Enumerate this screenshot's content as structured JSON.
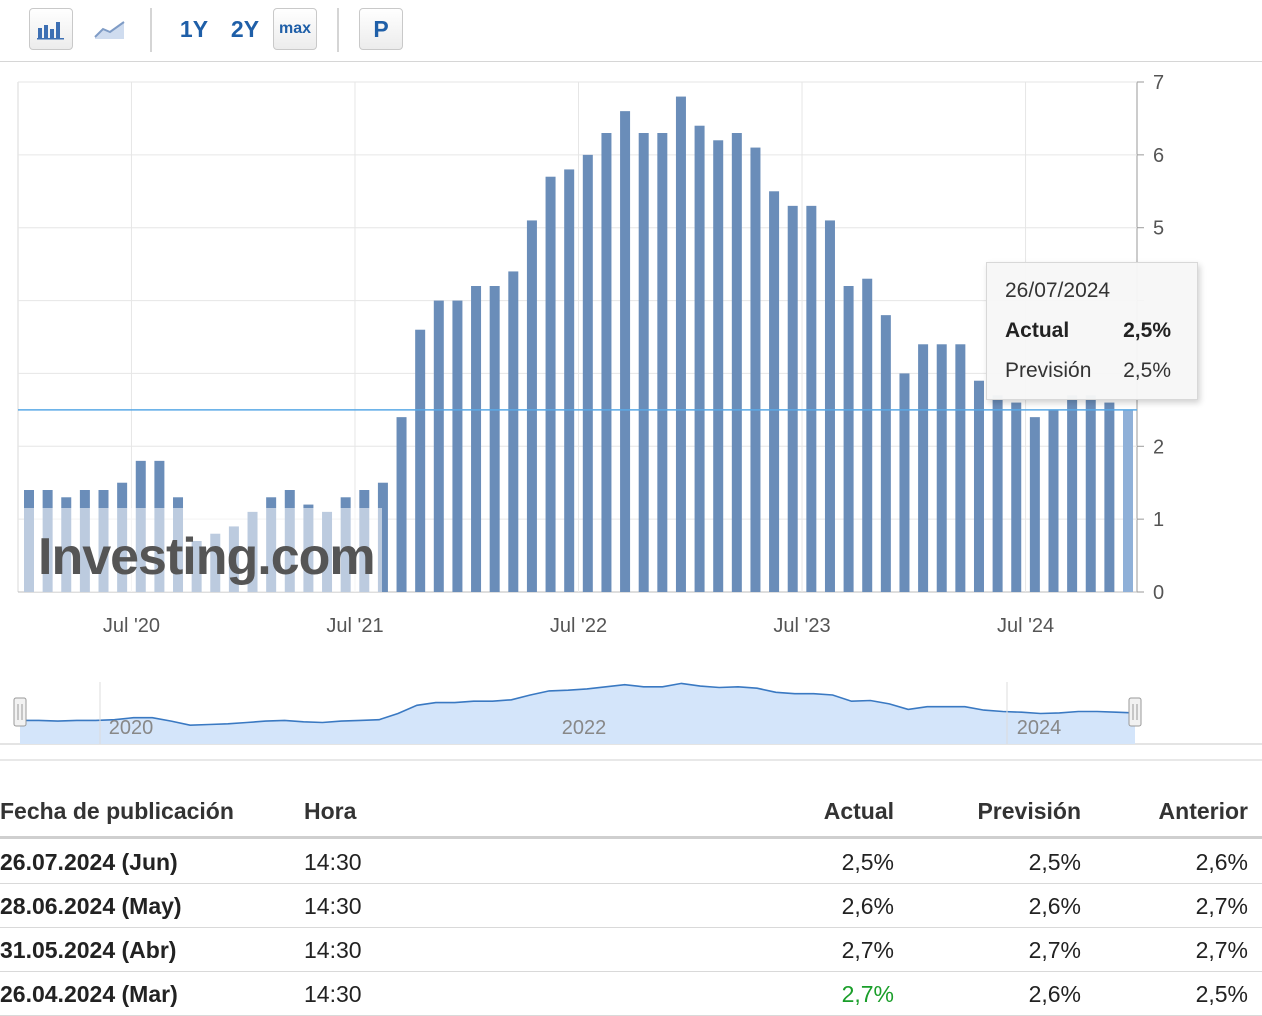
{
  "toolbar": {
    "bar_chart_icon": "bar-chart-icon",
    "line_chart_icon": "line-chart-icon",
    "range_1y": "1Y",
    "range_2y": "2Y",
    "range_max": "max",
    "p_button": "P"
  },
  "chart_data": {
    "type": "bar",
    "title": "",
    "xlabel": "",
    "ylabel": "",
    "ylim": [
      0,
      7
    ],
    "y_ticks": [
      "0",
      "1",
      "2",
      "",
      "",
      "5",
      "6",
      "7"
    ],
    "x_tick_labels": [
      "Jul '20",
      "Jul '21",
      "Jul '22",
      "Jul '23",
      "Jul '24"
    ],
    "reference_line": 2.5,
    "bar_color": "#6a8db9",
    "highlight_color": "#8fb0d8",
    "series": [
      {
        "values": [
          1.4,
          1.4,
          1.3,
          1.4,
          1.4,
          1.5,
          1.8,
          1.8,
          1.3,
          0.7,
          0.8,
          0.9,
          1.1,
          1.3,
          1.4,
          1.2,
          1.1,
          1.3,
          1.4,
          1.5,
          2.4,
          3.6,
          4.0,
          4.0,
          4.2,
          4.2,
          4.4,
          5.1,
          5.7,
          5.8,
          6.0,
          6.3,
          6.6,
          6.3,
          6.3,
          6.8,
          6.4,
          6.2,
          6.3,
          6.1,
          5.5,
          5.3,
          5.3,
          5.1,
          4.2,
          4.3,
          3.8,
          3.0,
          3.4,
          3.4,
          3.4,
          2.9,
          2.7,
          2.6,
          2.4,
          2.5,
          2.7,
          2.7,
          2.6,
          2.5
        ]
      }
    ],
    "watermark": "Investing.com"
  },
  "navigator": {
    "labels": [
      "2020",
      "2022",
      "2024"
    ]
  },
  "tooltip": {
    "date": "26/07/2024",
    "actual_label": "Actual",
    "actual_value": "2,5%",
    "forecast_label": "Previsión",
    "forecast_value": "2,5%"
  },
  "table": {
    "headers": {
      "date": "Fecha de publicación",
      "time": "Hora",
      "actual": "Actual",
      "forecast": "Previsión",
      "previous": "Anterior"
    },
    "rows": [
      {
        "date": "26.07.2024 (Jun)",
        "time": "14:30",
        "actual": "2,5%",
        "forecast": "2,5%",
        "previous": "2,6%"
      },
      {
        "date": "28.06.2024 (May)",
        "time": "14:30",
        "actual": "2,6%",
        "forecast": "2,6%",
        "previous": "2,7%"
      },
      {
        "date": "31.05.2024 (Abr)",
        "time": "14:30",
        "actual": "2,7%",
        "forecast": "2,7%",
        "previous": "2,7%"
      },
      {
        "date": "26.04.2024 (Mar)",
        "time": "14:30",
        "actual": "2,7%",
        "forecast": "2,6%",
        "previous": "2,5%",
        "actual_color": "#1a9e2a"
      }
    ]
  }
}
